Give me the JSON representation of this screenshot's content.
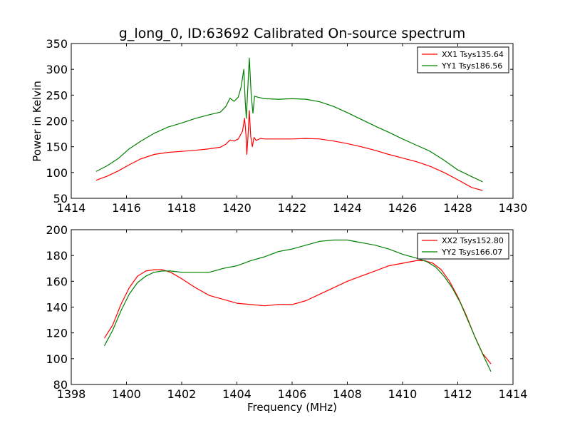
{
  "chart_data": [
    {
      "type": "line",
      "title": "g_long_0, ID:63692 Calibrated On-source spectrum",
      "ylabel": "Power in Kelvin",
      "xlabel": "",
      "xlim": [
        1414,
        1430
      ],
      "ylim": [
        50,
        350
      ],
      "xticks": [
        1414,
        1416,
        1418,
        1420,
        1422,
        1424,
        1426,
        1428,
        1430
      ],
      "yticks": [
        50,
        100,
        150,
        200,
        250,
        300,
        350
      ],
      "grid": false,
      "legend_position": "top-right",
      "series": [
        {
          "name": "XX1 Tsys135.64",
          "color": "#ff0000",
          "points": [
            [
              1414.9,
              85
            ],
            [
              1415.3,
              93
            ],
            [
              1415.7,
              103
            ],
            [
              1416.1,
              115
            ],
            [
              1416.5,
              126
            ],
            [
              1417.0,
              135
            ],
            [
              1417.5,
              139
            ],
            [
              1418.0,
              141
            ],
            [
              1418.5,
              143
            ],
            [
              1419.0,
              146
            ],
            [
              1419.4,
              149
            ],
            [
              1419.6,
              155
            ],
            [
              1419.75,
              163
            ],
            [
              1419.9,
              161
            ],
            [
              1420.05,
              165
            ],
            [
              1420.2,
              180
            ],
            [
              1420.28,
              205
            ],
            [
              1420.33,
              172
            ],
            [
              1420.36,
              135
            ],
            [
              1420.4,
              168
            ],
            [
              1420.45,
              220
            ],
            [
              1420.5,
              170
            ],
            [
              1420.56,
              150
            ],
            [
              1420.62,
              168
            ],
            [
              1420.7,
              162
            ],
            [
              1420.85,
              166
            ],
            [
              1421.0,
              165
            ],
            [
              1421.5,
              165
            ],
            [
              1422.0,
              165
            ],
            [
              1422.5,
              166
            ],
            [
              1423.0,
              165
            ],
            [
              1423.5,
              161
            ],
            [
              1424.0,
              156
            ],
            [
              1424.5,
              150
            ],
            [
              1425.0,
              143
            ],
            [
              1425.5,
              135
            ],
            [
              1426.0,
              128
            ],
            [
              1426.5,
              121
            ],
            [
              1427.0,
              112
            ],
            [
              1427.5,
              100
            ],
            [
              1428.0,
              86
            ],
            [
              1428.5,
              71
            ],
            [
              1428.9,
              65
            ]
          ]
        },
        {
          "name": "YY1 Tsys186.56",
          "color": "#008000",
          "points": [
            [
              1414.9,
              102
            ],
            [
              1415.3,
              113
            ],
            [
              1415.7,
              127
            ],
            [
              1416.1,
              146
            ],
            [
              1416.5,
              160
            ],
            [
              1417.0,
              176
            ],
            [
              1417.5,
              188
            ],
            [
              1418.0,
              196
            ],
            [
              1418.5,
              205
            ],
            [
              1419.0,
              212
            ],
            [
              1419.4,
              217
            ],
            [
              1419.6,
              228
            ],
            [
              1419.75,
              244
            ],
            [
              1419.9,
              238
            ],
            [
              1420.05,
              246
            ],
            [
              1420.15,
              265
            ],
            [
              1420.25,
              300
            ],
            [
              1420.3,
              240
            ],
            [
              1420.34,
              205
            ],
            [
              1420.39,
              258
            ],
            [
              1420.45,
              322
            ],
            [
              1420.52,
              250
            ],
            [
              1420.58,
              215
            ],
            [
              1420.64,
              248
            ],
            [
              1420.75,
              246
            ],
            [
              1421.0,
              243
            ],
            [
              1421.5,
              242
            ],
            [
              1422.0,
              243
            ],
            [
              1422.5,
              242
            ],
            [
              1423.0,
              237
            ],
            [
              1423.5,
              228
            ],
            [
              1424.0,
              216
            ],
            [
              1424.5,
              203
            ],
            [
              1425.0,
              190
            ],
            [
              1425.5,
              178
            ],
            [
              1426.0,
              165
            ],
            [
              1426.5,
              153
            ],
            [
              1427.0,
              141
            ],
            [
              1427.5,
              124
            ],
            [
              1428.0,
              105
            ],
            [
              1428.5,
              92
            ],
            [
              1428.9,
              82
            ]
          ]
        }
      ]
    },
    {
      "type": "line",
      "title": "",
      "xlabel": "Frequency (MHz)",
      "ylabel": "",
      "xlim": [
        1398,
        1414
      ],
      "ylim": [
        80,
        200
      ],
      "xticks": [
        1398,
        1400,
        1402,
        1404,
        1406,
        1408,
        1410,
        1412,
        1414
      ],
      "yticks": [
        80,
        100,
        120,
        140,
        160,
        180,
        200
      ],
      "grid": false,
      "legend_position": "top-right",
      "series": [
        {
          "name": "XX2 Tsys152.80",
          "color": "#ff0000",
          "points": [
            [
              1399.2,
              116
            ],
            [
              1399.5,
              126
            ],
            [
              1399.8,
              142
            ],
            [
              1400.1,
              155
            ],
            [
              1400.4,
              164
            ],
            [
              1400.7,
              168
            ],
            [
              1401.0,
              169
            ],
            [
              1401.3,
              169
            ],
            [
              1401.6,
              167
            ],
            [
              1402.0,
              162
            ],
            [
              1402.5,
              155
            ],
            [
              1403.0,
              149
            ],
            [
              1403.5,
              146
            ],
            [
              1404.0,
              143
            ],
            [
              1404.5,
              142
            ],
            [
              1405.0,
              141
            ],
            [
              1405.5,
              142
            ],
            [
              1406.0,
              142
            ],
            [
              1406.5,
              145
            ],
            [
              1407.0,
              150
            ],
            [
              1407.5,
              155
            ],
            [
              1408.0,
              160
            ],
            [
              1408.5,
              164
            ],
            [
              1409.0,
              168
            ],
            [
              1409.5,
              172
            ],
            [
              1410.0,
              174
            ],
            [
              1410.5,
              176
            ],
            [
              1410.8,
              176
            ],
            [
              1411.1,
              174
            ],
            [
              1411.4,
              169
            ],
            [
              1411.7,
              160
            ],
            [
              1412.0,
              148
            ],
            [
              1412.3,
              134
            ],
            [
              1412.6,
              118
            ],
            [
              1412.9,
              104
            ],
            [
              1413.2,
              96
            ]
          ]
        },
        {
          "name": "YY2 Tsys166.07",
          "color": "#008000",
          "points": [
            [
              1399.2,
              110
            ],
            [
              1399.5,
              122
            ],
            [
              1399.8,
              137
            ],
            [
              1400.1,
              150
            ],
            [
              1400.4,
              159
            ],
            [
              1400.7,
              164
            ],
            [
              1401.0,
              167
            ],
            [
              1401.3,
              168
            ],
            [
              1401.6,
              168
            ],
            [
              1402.0,
              167
            ],
            [
              1402.5,
              167
            ],
            [
              1403.0,
              167
            ],
            [
              1403.5,
              170
            ],
            [
              1404.0,
              172
            ],
            [
              1404.5,
              176
            ],
            [
              1405.0,
              179
            ],
            [
              1405.5,
              183
            ],
            [
              1406.0,
              185
            ],
            [
              1406.5,
              188
            ],
            [
              1407.0,
              191
            ],
            [
              1407.5,
              192
            ],
            [
              1408.0,
              192
            ],
            [
              1408.5,
              190
            ],
            [
              1409.0,
              188
            ],
            [
              1409.5,
              185
            ],
            [
              1410.0,
              181
            ],
            [
              1410.5,
              178
            ],
            [
              1410.9,
              175
            ],
            [
              1411.2,
              171
            ],
            [
              1411.5,
              164
            ],
            [
              1411.8,
              155
            ],
            [
              1412.1,
              143
            ],
            [
              1412.4,
              128
            ],
            [
              1412.7,
              113
            ],
            [
              1413.0,
              99
            ],
            [
              1413.2,
              90
            ]
          ]
        }
      ]
    }
  ]
}
